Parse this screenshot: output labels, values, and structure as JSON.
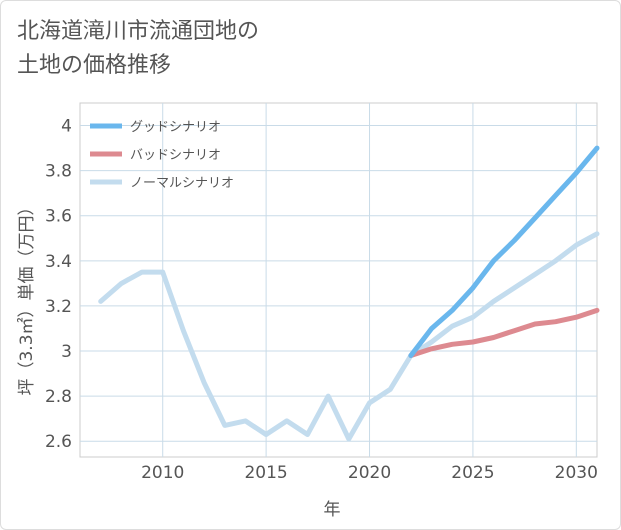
{
  "title": "北海道滝川市流通団地の\n土地の価格推移",
  "chart_data": {
    "type": "line",
    "xlabel": "年",
    "ylabel": "坪（3.3㎡）単価（万円）",
    "xlim": [
      2006,
      2031
    ],
    "ylim": [
      2.53,
      4.1
    ],
    "xticks": [
      2010,
      2015,
      2020,
      2025,
      2030
    ],
    "yticks": [
      2.6,
      2.8,
      3,
      3.2,
      3.4,
      3.6,
      3.8,
      4
    ],
    "grid": true,
    "legend_position": "top-left",
    "series": [
      {
        "name": "グッドシナリオ",
        "color": "#6ab7ed",
        "x": [
          2022,
          2023,
          2024,
          2025,
          2026,
          2027,
          2028,
          2029,
          2030,
          2031
        ],
        "y": [
          2.98,
          3.1,
          3.18,
          3.28,
          3.4,
          3.49,
          3.59,
          3.69,
          3.79,
          3.9
        ]
      },
      {
        "name": "バッドシナリオ",
        "color": "#dd8a90",
        "x": [
          2022,
          2023,
          2024,
          2025,
          2026,
          2027,
          2028,
          2029,
          2030,
          2031
        ],
        "y": [
          2.98,
          3.01,
          3.03,
          3.04,
          3.06,
          3.09,
          3.12,
          3.13,
          3.15,
          3.18
        ]
      },
      {
        "name": "ノーマルシナリオ",
        "color": "#c3dcee",
        "x": [
          2007,
          2008,
          2009,
          2010,
          2011,
          2012,
          2013,
          2014,
          2015,
          2016,
          2017,
          2018,
          2019,
          2020,
          2021,
          2022,
          2023,
          2024,
          2025,
          2026,
          2027,
          2028,
          2029,
          2030,
          2031
        ],
        "y": [
          3.22,
          3.3,
          3.35,
          3.35,
          3.09,
          2.86,
          2.67,
          2.69,
          2.63,
          2.69,
          2.63,
          2.8,
          2.61,
          2.77,
          2.83,
          2.98,
          3.04,
          3.11,
          3.15,
          3.22,
          3.28,
          3.34,
          3.4,
          3.47,
          3.52
        ]
      }
    ]
  }
}
